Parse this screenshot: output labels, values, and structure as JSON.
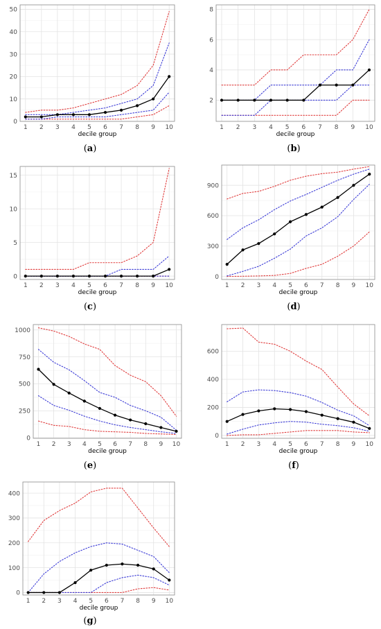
{
  "colors": {
    "panel_bg": "#ffffff",
    "panel_border": "#8a8a8a",
    "grid_major": "#e3e3e3",
    "grid_minor": "#f0f0f0",
    "median": "#000000",
    "inner_band": "#3b3bd6",
    "outer_band": "#e03b3b"
  },
  "chart_data": [
    {
      "id": "a",
      "type": "line",
      "caption": "a",
      "xlabel": "decile group",
      "x": [
        1,
        2,
        3,
        4,
        5,
        6,
        7,
        8,
        9,
        10
      ],
      "ylim": [
        0,
        52
      ],
      "yticks": [
        0,
        10,
        20,
        30,
        40,
        50
      ],
      "grid": true,
      "series": [
        {
          "role": "median",
          "values": [
            2,
            2,
            3,
            3,
            3,
            4,
            5,
            7,
            10,
            20
          ]
        },
        {
          "role": "inner_upper",
          "values": [
            3,
            3,
            3,
            4,
            5,
            6,
            8,
            10,
            16,
            35
          ]
        },
        {
          "role": "inner_lower",
          "values": [
            1,
            1,
            2,
            2,
            2,
            2,
            3,
            4,
            5,
            13
          ]
        },
        {
          "role": "outer_upper",
          "values": [
            4,
            5,
            5,
            6,
            8,
            10,
            12,
            16,
            25,
            49
          ]
        },
        {
          "role": "outer_lower",
          "values": [
            1,
            1,
            1,
            1,
            1,
            1,
            1,
            2,
            3,
            7
          ]
        }
      ]
    },
    {
      "id": "b",
      "type": "line",
      "caption": "b",
      "xlabel": "decile group",
      "x": [
        1,
        2,
        3,
        4,
        5,
        6,
        7,
        8,
        9,
        10
      ],
      "ylim": [
        0.6,
        8.3
      ],
      "yticks": [
        2,
        4,
        6,
        8
      ],
      "grid": true,
      "series": [
        {
          "role": "median",
          "values": [
            2,
            2,
            2,
            2,
            2,
            2,
            3,
            3,
            3,
            4
          ]
        },
        {
          "role": "inner_upper",
          "values": [
            2,
            2,
            2,
            3,
            3,
            3,
            3,
            4,
            4,
            6
          ]
        },
        {
          "role": "inner_lower",
          "values": [
            1,
            1,
            1,
            2,
            2,
            2,
            2,
            2,
            3,
            3
          ]
        },
        {
          "role": "outer_upper",
          "values": [
            3,
            3,
            3,
            4,
            4,
            5,
            5,
            5,
            6,
            8
          ]
        },
        {
          "role": "outer_lower",
          "values": [
            1,
            1,
            1,
            1,
            1,
            1,
            1,
            1,
            2,
            2
          ]
        }
      ]
    },
    {
      "id": "c",
      "type": "line",
      "caption": "c",
      "xlabel": "decile group",
      "x": [
        1,
        2,
        3,
        4,
        5,
        6,
        7,
        8,
        9,
        10
      ],
      "ylim": [
        -0.5,
        16.3
      ],
      "yticks": [
        0,
        5,
        10,
        15
      ],
      "grid": true,
      "series": [
        {
          "role": "median",
          "values": [
            0,
            0,
            0,
            0,
            0,
            0,
            0,
            0,
            0,
            1
          ]
        },
        {
          "role": "inner_upper",
          "values": [
            0,
            0,
            0,
            0,
            0,
            0,
            1,
            1,
            1,
            3
          ]
        },
        {
          "role": "inner_lower",
          "values": [
            0,
            0,
            0,
            0,
            0,
            0,
            0,
            0,
            0,
            0
          ]
        },
        {
          "role": "outer_upper",
          "values": [
            1,
            1,
            1,
            1,
            2,
            2,
            2,
            3,
            5,
            16
          ]
        },
        {
          "role": "outer_lower",
          "values": [
            0,
            0,
            0,
            0,
            0,
            0,
            0,
            0,
            0,
            0
          ]
        }
      ]
    },
    {
      "id": "d",
      "type": "line",
      "caption": "d",
      "xlabel": "decile group",
      "x": [
        1,
        2,
        3,
        4,
        5,
        6,
        7,
        8,
        9,
        10
      ],
      "ylim": [
        -30,
        1100
      ],
      "yticks": [
        0,
        300,
        600,
        900
      ],
      "grid": true,
      "series": [
        {
          "role": "median",
          "values": [
            120,
            262,
            325,
            420,
            540,
            612,
            685,
            780,
            900,
            1010
          ]
        },
        {
          "role": "inner_upper",
          "values": [
            365,
            480,
            560,
            660,
            745,
            810,
            880,
            950,
            1010,
            1060
          ]
        },
        {
          "role": "inner_lower",
          "values": [
            5,
            50,
            100,
            180,
            270,
            400,
            480,
            590,
            760,
            910
          ]
        },
        {
          "role": "outer_upper",
          "values": [
            765,
            820,
            840,
            890,
            950,
            990,
            1015,
            1030,
            1060,
            1085
          ]
        },
        {
          "role": "outer_lower",
          "values": [
            0,
            2,
            5,
            10,
            30,
            80,
            120,
            200,
            300,
            440
          ]
        }
      ]
    },
    {
      "id": "e",
      "type": "line",
      "caption": "e",
      "xlabel": "decile group",
      "x": [
        1,
        2,
        3,
        4,
        5,
        6,
        7,
        8,
        9,
        10
      ],
      "ylim": [
        -5,
        1050
      ],
      "yticks": [
        0,
        250,
        500,
        750,
        1000
      ],
      "grid": true,
      "series": [
        {
          "role": "median",
          "values": [
            635,
            495,
            415,
            340,
            272,
            210,
            165,
            130,
            95,
            60
          ]
        },
        {
          "role": "inner_upper",
          "values": [
            820,
            700,
            630,
            530,
            420,
            375,
            300,
            250,
            190,
            70
          ]
        },
        {
          "role": "inner_lower",
          "values": [
            390,
            300,
            255,
            200,
            155,
            120,
            95,
            75,
            55,
            40
          ]
        },
        {
          "role": "outer_upper",
          "values": [
            1020,
            990,
            940,
            870,
            820,
            670,
            580,
            520,
            390,
            200
          ]
        },
        {
          "role": "outer_lower",
          "values": [
            155,
            115,
            105,
            75,
            60,
            55,
            50,
            40,
            35,
            30
          ]
        }
      ]
    },
    {
      "id": "f",
      "type": "line",
      "caption": "f",
      "xlabel": "decile group",
      "x": [
        1,
        2,
        3,
        4,
        5,
        6,
        7,
        8,
        9,
        10
      ],
      "ylim": [
        -20,
        790
      ],
      "yticks": [
        0,
        200,
        400,
        600
      ],
      "grid": true,
      "series": [
        {
          "role": "median",
          "values": [
            100,
            150,
            175,
            190,
            185,
            170,
            145,
            120,
            95,
            50
          ]
        },
        {
          "role": "inner_upper",
          "values": [
            240,
            310,
            325,
            320,
            305,
            280,
            235,
            180,
            140,
            70
          ]
        },
        {
          "role": "inner_lower",
          "values": [
            10,
            45,
            75,
            90,
            100,
            95,
            80,
            70,
            55,
            30
          ]
        },
        {
          "role": "outer_upper",
          "values": [
            760,
            765,
            665,
            650,
            600,
            530,
            470,
            345,
            225,
            140
          ]
        },
        {
          "role": "outer_lower",
          "values": [
            0,
            5,
            5,
            15,
            25,
            35,
            35,
            35,
            25,
            20
          ]
        }
      ]
    },
    {
      "id": "g",
      "type": "line",
      "caption": "g",
      "xlabel": "decile group",
      "x": [
        1,
        2,
        3,
        4,
        5,
        6,
        7,
        8,
        9,
        10
      ],
      "ylim": [
        -10,
        445
      ],
      "yticks": [
        0,
        100,
        200,
        300,
        400
      ],
      "grid": true,
      "series": [
        {
          "role": "median",
          "values": [
            0,
            0,
            0,
            40,
            90,
            110,
            115,
            110,
            95,
            50
          ]
        },
        {
          "role": "inner_upper",
          "values": [
            0,
            75,
            125,
            160,
            185,
            200,
            195,
            170,
            145,
            80
          ]
        },
        {
          "role": "inner_lower",
          "values": [
            0,
            0,
            0,
            0,
            0,
            40,
            60,
            70,
            60,
            30
          ]
        },
        {
          "role": "outer_upper",
          "values": [
            205,
            290,
            330,
            360,
            405,
            420,
            420,
            340,
            260,
            185
          ]
        },
        {
          "role": "outer_lower",
          "values": [
            0,
            0,
            0,
            0,
            0,
            0,
            0,
            15,
            20,
            10
          ]
        }
      ]
    }
  ]
}
